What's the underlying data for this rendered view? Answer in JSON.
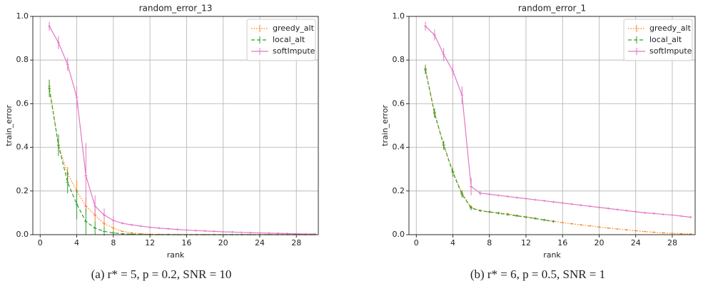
{
  "chart_data": [
    {
      "type": "line",
      "title": "random_error_13",
      "x_label": "rank",
      "y_label": "train_error",
      "caption": "(a) r* = 5, p = 0.2, SNR = 10",
      "x": [
        1,
        2,
        3,
        4,
        5,
        6,
        7,
        8,
        9,
        10,
        11,
        12,
        13,
        14,
        15,
        16,
        17,
        18,
        19,
        20,
        21,
        22,
        23,
        24,
        25,
        26,
        27,
        28,
        29,
        30
      ],
      "xlim": [
        -0.8,
        30.4
      ],
      "ylim": [
        0,
        1
      ],
      "xticks": [
        0,
        4,
        8,
        12,
        16,
        20,
        24,
        28
      ],
      "yticks": [
        {
          "value": 0,
          "label": "0.0"
        },
        0.2,
        0.4,
        0.6,
        0.8,
        {
          "value": 1,
          "label": "1.0"
        }
      ],
      "grid": true,
      "legend": "upper right",
      "series": [
        {
          "name": "greedy_alt",
          "color": "#ff7f0e",
          "style": "dotted",
          "values": [
            0.68,
            0.41,
            0.28,
            0.2,
            0.13,
            0.09,
            0.05,
            0.03,
            0.015,
            0.008,
            0.004,
            0.002,
            0.001,
            0.001,
            0,
            0,
            0,
            0,
            0,
            0,
            0,
            0,
            0,
            0,
            0,
            0,
            0,
            0,
            0,
            0
          ],
          "errors": [
            0.03,
            0.03,
            0.03,
            0.05,
            0.04,
            0.03,
            0.02,
            0.01,
            0.003,
            0.003,
            0.003,
            0.003,
            0.003,
            0.003,
            0.003,
            0.003,
            0.003,
            0.003,
            0.003,
            0.003,
            0.003,
            0.003,
            0.003,
            0.003,
            0.003,
            0.003,
            0.003,
            0.003,
            0.003,
            0.003
          ]
        },
        {
          "name": "local_alt",
          "color": "#2ca02c",
          "style": "dashed",
          "values": [
            0.67,
            0.41,
            0.24,
            0.14,
            0.06,
            0.03,
            0.015,
            0.008,
            0.004,
            0.002,
            0.001,
            0,
            0,
            0,
            0,
            0,
            0,
            0,
            0,
            0,
            0,
            0,
            0,
            0,
            0,
            0,
            0,
            0,
            0,
            0
          ],
          "errors": [
            0.04,
            0.05,
            0.05,
            0.07,
            0.06,
            0.03,
            0.02,
            0.01,
            0.002,
            0.002,
            0.002,
            0.002,
            0.002,
            0.002,
            0.002,
            0.002,
            0.002,
            0.002,
            0.002,
            0.002,
            0.002,
            0.002,
            0.002,
            0.002,
            0.002,
            0.002,
            0.002,
            0.002,
            0.002,
            0.002
          ]
        },
        {
          "name": "softImpute",
          "color": "#e377c2",
          "style": "solid",
          "values": [
            0.955,
            0.88,
            0.78,
            0.63,
            0.27,
            0.13,
            0.09,
            0.065,
            0.052,
            0.045,
            0.039,
            0.034,
            0.03,
            0.027,
            0.024,
            0.021,
            0.019,
            0.017,
            0.015,
            0.013,
            0.012,
            0.01,
            0.009,
            0.008,
            0.007,
            0.006,
            0.005,
            0.004,
            0.003,
            0.003
          ],
          "errors": [
            0.02,
            0.03,
            0.03,
            0.05,
            0.15,
            0.05,
            0.03,
            0.02,
            0.005,
            0.005,
            0.005,
            0.005,
            0.005,
            0.005,
            0.005,
            0.005,
            0.005,
            0.005,
            0.005,
            0.005,
            0.005,
            0.005,
            0.005,
            0.005,
            0.005,
            0.005,
            0.005,
            0.005,
            0.005,
            0.005
          ]
        }
      ]
    },
    {
      "type": "line",
      "title": "random_error_1",
      "x_label": "rank",
      "y_label": "train_error",
      "caption": "(b) r* = 6, p = 0.5, SNR = 1",
      "x": [
        1,
        2,
        3,
        4,
        5,
        6,
        7,
        8,
        9,
        10,
        11,
        12,
        13,
        14,
        15,
        16,
        17,
        18,
        19,
        20,
        21,
        22,
        23,
        24,
        25,
        26,
        27,
        28,
        29,
        30
      ],
      "xlim": [
        -0.8,
        30.5
      ],
      "ylim": [
        0,
        1
      ],
      "xticks": [
        0,
        4,
        8,
        12,
        16,
        20,
        24,
        28
      ],
      "yticks": [
        {
          "value": 0,
          "label": "0.0"
        },
        0.2,
        0.4,
        0.6,
        0.8,
        {
          "value": 1,
          "label": "1.0"
        }
      ],
      "grid": true,
      "legend": "upper right",
      "series": [
        {
          "name": "greedy_alt",
          "color": "#ff7f0e",
          "style": "dotted",
          "values": [
            0.76,
            0.56,
            0.41,
            0.29,
            0.19,
            0.125,
            0.11,
            0.105,
            0.1,
            0.095,
            0.088,
            0.082,
            0.075,
            0.068,
            0.062,
            0.055,
            0.05,
            0.045,
            0.04,
            0.035,
            0.03,
            0.026,
            0.022,
            0.018,
            0.014,
            0.011,
            0.008,
            0.006,
            0.004,
            0.003
          ],
          "errors": [
            0.02,
            0.02,
            0.02,
            0.02,
            0.015,
            0.01,
            0.005,
            0.005,
            0.005,
            0.005,
            0.005,
            0.005,
            0.005,
            0.005,
            0.005,
            0.003,
            0.003,
            0.003,
            0.003,
            0.003,
            0.003,
            0.003,
            0.003,
            0.003,
            0.003,
            0.003,
            0.003,
            0.003,
            0.003,
            0.003
          ]
        },
        {
          "name": "local_alt",
          "color": "#2ca02c",
          "style": "dashed",
          "values": [
            0.755,
            0.555,
            0.41,
            0.285,
            0.185,
            0.122,
            0.11,
            0.104,
            0.098,
            0.092,
            0.086,
            0.08,
            0.074,
            0.067,
            0.06,
            null,
            null,
            null,
            null,
            null,
            null,
            null,
            null,
            null,
            null,
            null,
            null,
            null,
            null,
            null
          ],
          "errors": [
            0.02,
            0.02,
            0.02,
            0.02,
            0.015,
            0.01,
            0.005,
            0.005,
            0.005,
            0.005,
            0.005,
            0.005,
            0.005,
            0.005,
            0.005,
            null,
            null,
            null,
            null,
            null,
            null,
            null,
            null,
            null,
            null,
            null,
            null,
            null,
            null,
            null
          ]
        },
        {
          "name": "softImpute",
          "color": "#e377c2",
          "style": "solid",
          "values": [
            0.955,
            0.915,
            0.825,
            0.75,
            0.64,
            0.22,
            0.19,
            0.185,
            0.18,
            0.175,
            0.17,
            0.165,
            0.16,
            0.155,
            0.15,
            0.145,
            0.14,
            0.135,
            0.13,
            0.125,
            0.12,
            0.115,
            0.11,
            0.105,
            0.1,
            0.097,
            0.093,
            0.09,
            0.085,
            0.08
          ],
          "errors": [
            0.02,
            0.025,
            0.03,
            0.03,
            0.04,
            0.04,
            0.01,
            0.005,
            0.005,
            0.005,
            0.005,
            0.005,
            0.005,
            0.005,
            0.005,
            0.005,
            0.005,
            0.005,
            0.005,
            0.005,
            0.005,
            0.005,
            0.005,
            0.005,
            0.005,
            0.005,
            0.005,
            0.005,
            0.005,
            0.005
          ]
        }
      ]
    }
  ]
}
